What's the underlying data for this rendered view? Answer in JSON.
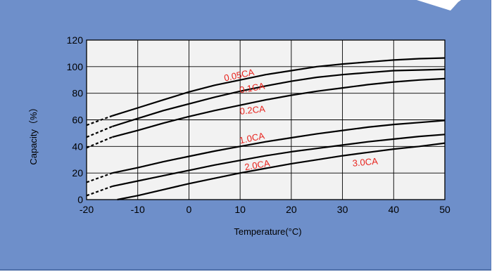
{
  "chart_data": {
    "type": "line",
    "title": "",
    "xlabel": "Temperature(°C)",
    "ylabel": "Capacity（%）",
    "xlim": [
      -20,
      50
    ],
    "ylim": [
      0,
      120
    ],
    "x_ticks": [
      "-20",
      "-10",
      "0",
      "10",
      "20",
      "30",
      "40",
      "50"
    ],
    "y_ticks": [
      "0",
      "20",
      "40",
      "60",
      "80",
      "100",
      "120"
    ],
    "grid": true,
    "legend": "none",
    "series": [
      {
        "name": "0.05CA",
        "x_dashed": [
          -20,
          -15
        ],
        "y_dashed": [
          56,
          63
        ],
        "x": [
          -15,
          -10,
          -5,
          0,
          5,
          10,
          15,
          20,
          25,
          30,
          35,
          40,
          45,
          50
        ],
        "y": [
          63,
          69,
          75,
          81,
          86,
          90,
          94,
          97,
          100,
          102,
          103.5,
          105,
          106,
          106.5
        ]
      },
      {
        "name": "0.1CA",
        "x_dashed": [
          -20,
          -15
        ],
        "y_dashed": [
          47,
          55
        ],
        "x": [
          -15,
          -10,
          -5,
          0,
          5,
          10,
          15,
          20,
          25,
          30,
          35,
          40,
          45,
          50
        ],
        "y": [
          55,
          61,
          67,
          72,
          77,
          81.5,
          85.5,
          89,
          92,
          94,
          95.5,
          97,
          97.5,
          98
        ]
      },
      {
        "name": "0.2CA",
        "x_dashed": [
          -20,
          -15
        ],
        "y_dashed": [
          39,
          47
        ],
        "x": [
          -15,
          -10,
          -5,
          0,
          5,
          10,
          15,
          20,
          25,
          30,
          35,
          40,
          45,
          50
        ],
        "y": [
          47,
          52,
          57.5,
          62.5,
          67,
          71,
          75,
          78.5,
          81.5,
          84,
          86.5,
          88.5,
          90,
          91
        ]
      },
      {
        "name": "1.0CA",
        "x_dashed": [
          -20,
          -15
        ],
        "y_dashed": [
          13,
          20
        ],
        "x": [
          -15,
          -10,
          -5,
          0,
          5,
          10,
          15,
          20,
          25,
          30,
          35,
          40,
          45,
          50
        ],
        "y": [
          20,
          24,
          28.5,
          32.5,
          36.5,
          40,
          43.5,
          46.5,
          49.5,
          52,
          54.5,
          56.5,
          58,
          59.5
        ]
      },
      {
        "name": "2.0CA",
        "x_dashed": [
          -20,
          -15
        ],
        "y_dashed": [
          3,
          10
        ],
        "x": [
          -15,
          -10,
          -5,
          0,
          5,
          10,
          15,
          20,
          25,
          30,
          35,
          40,
          45,
          50
        ],
        "y": [
          10,
          14,
          18,
          22,
          26,
          29.5,
          33,
          36,
          38.5,
          41,
          43.5,
          45.5,
          47.5,
          49
        ]
      },
      {
        "name": "3.0CA",
        "x": [
          -14,
          -10,
          -5,
          0,
          5,
          10,
          15,
          20,
          25,
          30,
          35,
          40,
          45,
          50
        ],
        "y": [
          0,
          3,
          7.5,
          12,
          16,
          20,
          23.5,
          27,
          30,
          33,
          35.5,
          38,
          40,
          42.5
        ]
      }
    ],
    "annotations": [
      {
        "text": "0.05CA",
        "x": 7,
        "y": 89,
        "angle": -12
      },
      {
        "text": "0.1CA",
        "x": 10,
        "y": 80,
        "angle": -10
      },
      {
        "text": "0.2CA",
        "x": 10,
        "y": 64,
        "angle": -6
      },
      {
        "text": "1.0CA",
        "x": 10,
        "y": 42,
        "angle": -12
      },
      {
        "text": "2.0CA",
        "x": 11,
        "y": 22,
        "angle": -10
      },
      {
        "text": "3.0CA",
        "x": 32,
        "y": 25,
        "angle": -5
      }
    ]
  }
}
